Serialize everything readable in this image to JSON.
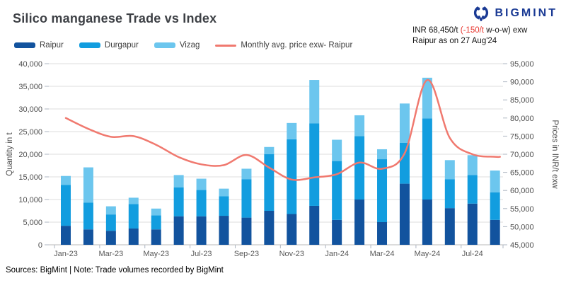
{
  "header": {
    "title": "Silico manganese Trade vs Index",
    "logo_text": "BIGMINT",
    "logo_color": "#1a3a94"
  },
  "annotation": {
    "line1_pre": "INR 68,450/t ",
    "line1_red": "(-150/t",
    "line1_post": " w-o-w) exw",
    "line2": "Raipur as on 27 Aug'24",
    "red_color": "#e8342c"
  },
  "legend": [
    {
      "label": "Raipur",
      "color": "#12539e",
      "type": "bar"
    },
    {
      "label": "Durgapur",
      "color": "#129ddf",
      "type": "bar"
    },
    {
      "label": "Vizag",
      "color": "#6cc6ee",
      "type": "bar"
    },
    {
      "label": "Monthly avg. price exw- Raipur",
      "color": "#f0796f",
      "type": "line"
    }
  ],
  "footer": {
    "text": "Sources: BigMint | Note: Trade volumes recorded by BigMint"
  },
  "chart_data": {
    "type": "bar",
    "subtype": "stacked-bars-with-secondary-axis-line",
    "title": "Silico manganese Trade vs Index",
    "categories": [
      "Jan-23",
      "Feb-23",
      "Mar-23",
      "Apr-23",
      "May-23",
      "Jun-23",
      "Jul-23",
      "Aug-23",
      "Sep-23",
      "Oct-23",
      "Nov-23",
      "Dec-23",
      "Jan-24",
      "Feb-24",
      "Mar-24",
      "Apr-24",
      "May-24",
      "Jun-24",
      "Jul-24",
      "Aug-24"
    ],
    "x_tick_labels": [
      "Jan-23",
      "Mar-23",
      "May-23",
      "Jul-23",
      "Sep-23",
      "Nov-23",
      "Jan-24",
      "Mar-24",
      "May-24",
      "Jul-24"
    ],
    "series": [
      {
        "name": "Raipur",
        "type": "bar",
        "stack": "volume",
        "color": "#12539e",
        "values": [
          4200,
          3400,
          3100,
          3600,
          3400,
          6300,
          6300,
          6400,
          6000,
          7500,
          6800,
          8600,
          5500,
          10000,
          5000,
          13500,
          10000,
          8100,
          9100,
          5500
        ]
      },
      {
        "name": "Durgapur",
        "type": "bar",
        "stack": "volume",
        "color": "#129ddf",
        "values": [
          9000,
          5900,
          3600,
          5400,
          3100,
          6400,
          5800,
          4300,
          8500,
          12500,
          16500,
          18200,
          13000,
          14000,
          13900,
          9000,
          17900,
          6400,
          6300,
          6100
        ]
      },
      {
        "name": "Vizag",
        "type": "bar",
        "stack": "volume",
        "color": "#6cc6ee",
        "values": [
          2000,
          7800,
          1800,
          1400,
          1500,
          2700,
          2500,
          1700,
          2300,
          1600,
          3600,
          9600,
          4700,
          4600,
          2200,
          8700,
          9000,
          4200,
          4400,
          4800
        ]
      },
      {
        "name": "Monthly avg. price exw- Raipur",
        "type": "line",
        "axis": "right",
        "color": "#f0796f",
        "values": [
          80000,
          77000,
          74800,
          75000,
          72600,
          69200,
          67200,
          67000,
          69800,
          66300,
          63000,
          63600,
          64500,
          67700,
          66000,
          70300,
          90500,
          74500,
          70000,
          69300
        ]
      }
    ],
    "left_axis": {
      "label": "Quantity in t",
      "min": 0,
      "max": 40000,
      "step": 5000,
      "tick_labels": [
        "0",
        "5,000",
        "10,000",
        "15,000",
        "20,000",
        "25,000",
        "30,000",
        "35,000",
        "40,000"
      ]
    },
    "right_axis": {
      "label": "Prices in INR/t exw",
      "min": 45000,
      "max": 95000,
      "step": 5000,
      "tick_labels": [
        "45,000",
        "50,000",
        "55,000",
        "60,000",
        "65,000",
        "70,000",
        "75,000",
        "80,000",
        "85,000",
        "90,000",
        "95,000"
      ]
    },
    "grid": true,
    "legend_position": "top-left"
  }
}
